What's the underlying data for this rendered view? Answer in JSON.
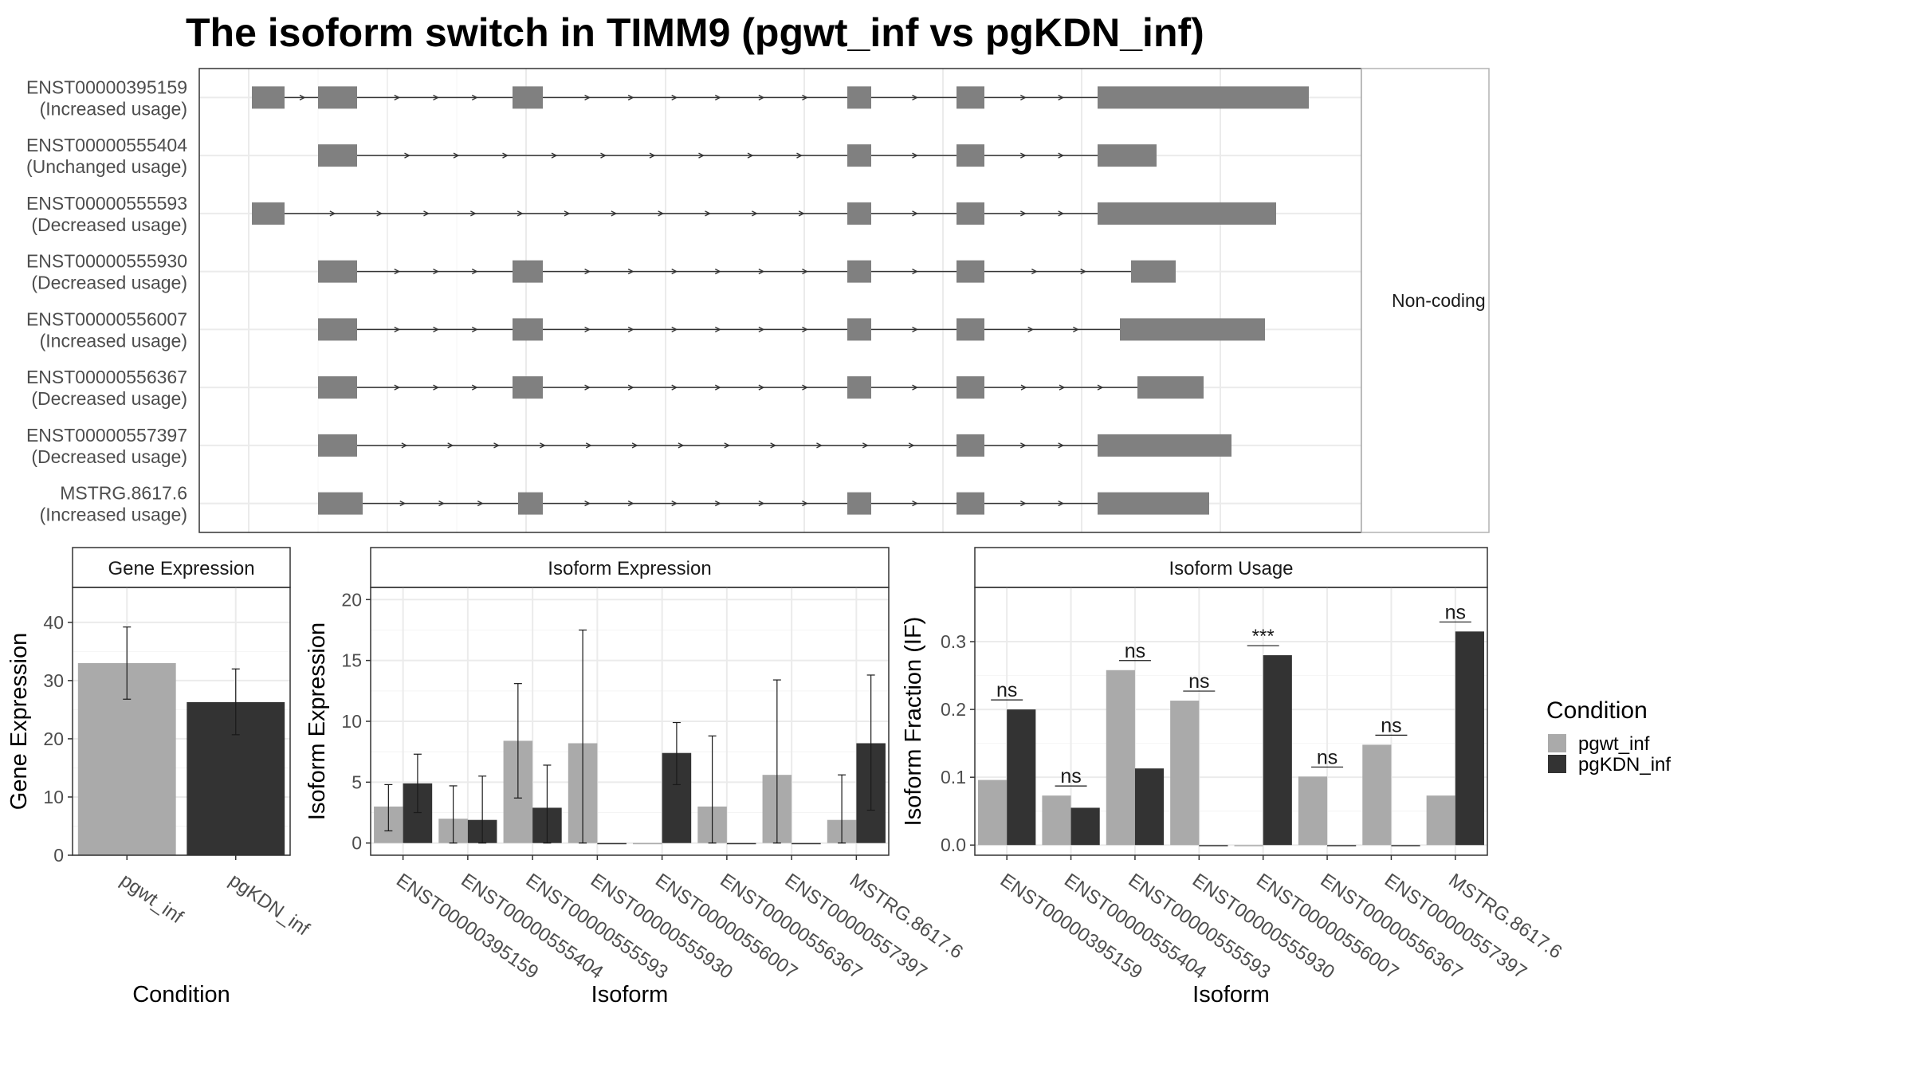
{
  "title": "The isoform switch in TIMM9 (pgwt_inf vs pgKDN_inf)",
  "colors": {
    "pgwt_inf": "#aaaaaa",
    "pgKDN_inf": "#333333",
    "exon": "#808080",
    "grid": "#ebebeb",
    "strip": "#ffffff"
  },
  "chart_data": [
    {
      "type": "transcript_structure",
      "facet_label": "Non-coding",
      "transcripts": [
        {
          "name": "ENST00000395159",
          "status": "(Increased usage)"
        },
        {
          "name": "ENST00000555404",
          "status": "(Unchanged usage)"
        },
        {
          "name": "ENST00000555593",
          "status": "(Decreased usage)"
        },
        {
          "name": "ENST00000555930",
          "status": "(Decreased usage)"
        },
        {
          "name": "ENST00000556007",
          "status": "(Increased usage)"
        },
        {
          "name": "ENST00000556367",
          "status": "(Decreased usage)"
        },
        {
          "name": "ENST00000557397",
          "status": "(Decreased usage)"
        },
        {
          "name": "MSTRG.8617.6",
          "status": "(Increased usage)"
        }
      ]
    },
    {
      "type": "bar",
      "title": "Gene Expression",
      "xlabel": "Condition",
      "ylabel": "Gene Expression",
      "categories": [
        "pgwt_inf",
        "pgKDN_inf"
      ],
      "values": [
        33,
        26.3
      ],
      "error_low": [
        26.8,
        20.7
      ],
      "error_high": [
        39.2,
        32
      ],
      "ylim": [
        0,
        46
      ],
      "yticks": [
        0,
        10,
        20,
        30,
        40
      ]
    },
    {
      "type": "bar",
      "title": "Isoform Expression",
      "xlabel": "Isoform",
      "ylabel": "Isoform Expression",
      "categories": [
        "ENST00000395159",
        "ENST00000555404",
        "ENST00000555593",
        "ENST00000555930",
        "ENST00000556007",
        "ENST00000556367",
        "ENST00000557397",
        "MSTRG.8617.6"
      ],
      "series": [
        {
          "name": "pgwt_inf",
          "values": [
            3.0,
            2.0,
            8.4,
            8.2,
            0,
            3.0,
            5.6,
            1.9
          ],
          "error_low": [
            1.0,
            0,
            3.7,
            0,
            0,
            0,
            0,
            0
          ],
          "error_high": [
            4.8,
            4.7,
            13.1,
            17.5,
            0,
            8.8,
            13.4,
            5.6
          ]
        },
        {
          "name": "pgKDN_inf",
          "values": [
            4.9,
            1.9,
            2.9,
            0,
            7.4,
            0,
            0,
            8.2
          ],
          "error_low": [
            2.5,
            0,
            0,
            0,
            4.8,
            0,
            0,
            2.7
          ],
          "error_high": [
            7.3,
            5.5,
            6.4,
            0,
            9.9,
            0,
            0,
            13.8
          ]
        }
      ],
      "ylim": [
        -1,
        21
      ],
      "yticks": [
        0,
        5,
        10,
        15,
        20
      ]
    },
    {
      "type": "bar",
      "title": "Isoform Usage",
      "xlabel": "Isoform",
      "ylabel": "Isoform Fraction (IF)",
      "categories": [
        "ENST00000395159",
        "ENST00000555404",
        "ENST00000555593",
        "ENST00000555930",
        "ENST00000556007",
        "ENST00000556367",
        "ENST00000557397",
        "MSTRG.8617.6"
      ],
      "series": [
        {
          "name": "pgwt_inf",
          "values": [
            0.096,
            0.073,
            0.258,
            0.213,
            0,
            0.101,
            0.148,
            0.073
          ]
        },
        {
          "name": "pgKDN_inf",
          "values": [
            0.2,
            0.055,
            0.113,
            0,
            0.28,
            0,
            0,
            0.315
          ]
        }
      ],
      "significance": [
        "ns",
        "ns",
        "ns",
        "ns",
        "***",
        "ns",
        "ns",
        "ns"
      ],
      "ylim": [
        -0.015,
        0.38
      ],
      "yticks": [
        0.0,
        0.1,
        0.2,
        0.3
      ],
      "ytick_labels": [
        "0.0",
        "0.1",
        "0.2",
        "0.3"
      ]
    }
  ],
  "legend": {
    "title": "Condition",
    "entries": [
      {
        "label": "pgwt_inf",
        "color": "#aaaaaa"
      },
      {
        "label": "pgKDN_inf",
        "color": "#333333"
      }
    ]
  }
}
